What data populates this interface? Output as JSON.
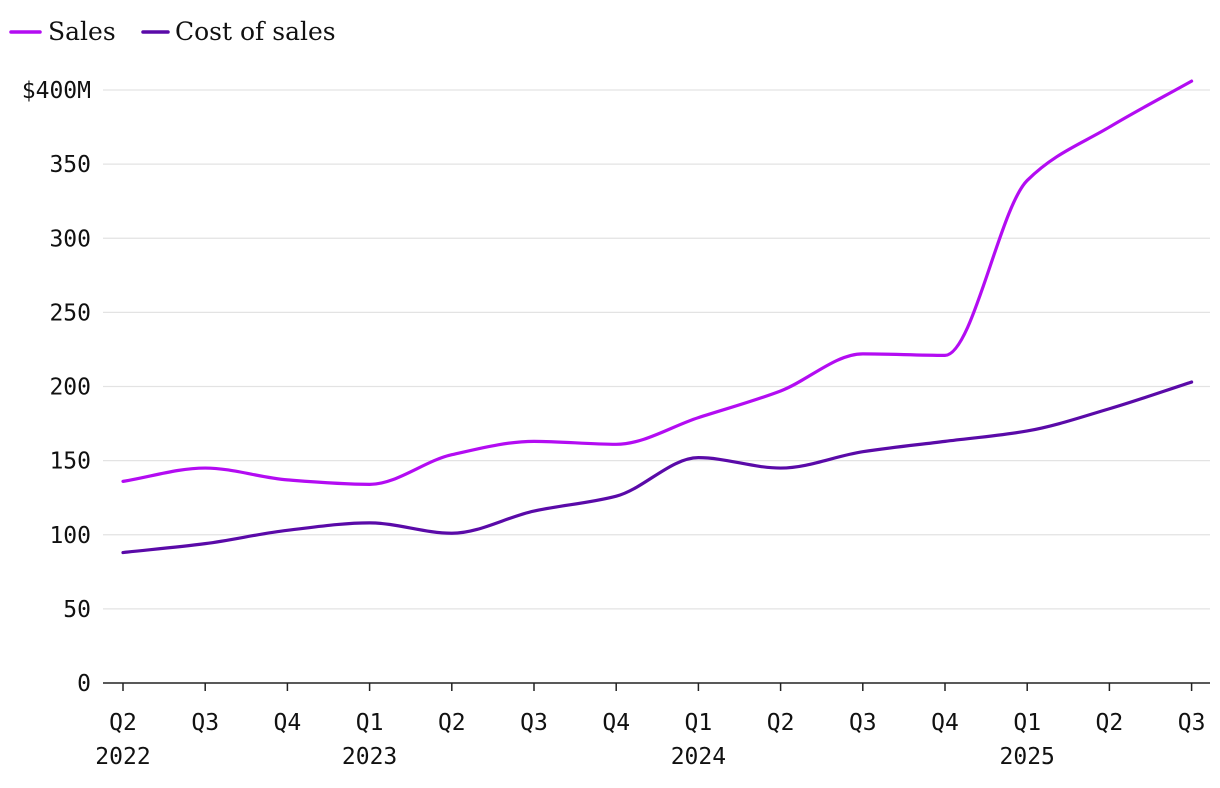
{
  "chart_data": {
    "type": "line",
    "title": "",
    "xlabel": "",
    "ylabel": "",
    "ylim": [
      0,
      400
    ],
    "y_ticks": [
      0,
      50,
      100,
      150,
      200,
      250,
      300,
      350,
      400
    ],
    "y_tick_labels": [
      "0",
      "50",
      "100",
      "150",
      "200",
      "250",
      "300",
      "350",
      "$400M"
    ],
    "categories": [
      "Q2",
      "Q3",
      "Q4",
      "Q1",
      "Q2",
      "Q3",
      "Q4",
      "Q1",
      "Q2",
      "Q3",
      "Q4",
      "Q1",
      "Q2",
      "Q3"
    ],
    "year_labels": [
      {
        "index": 0,
        "label": "2022"
      },
      {
        "index": 3,
        "label": "2023"
      },
      {
        "index": 7,
        "label": "2024"
      },
      {
        "index": 11,
        "label": "2025"
      }
    ],
    "grid": true,
    "legend_position": "top-left",
    "series": [
      {
        "name": "Sales",
        "color": "#b30cf2",
        "values": [
          136,
          145,
          137,
          134,
          154,
          163,
          161,
          179,
          197,
          222,
          221,
          339,
          375,
          406
        ]
      },
      {
        "name": "Cost of sales",
        "color": "#5a0aa8",
        "values": [
          88,
          94,
          103,
          108,
          101,
          116,
          126,
          152,
          145,
          156,
          163,
          170,
          185,
          203
        ]
      }
    ]
  }
}
